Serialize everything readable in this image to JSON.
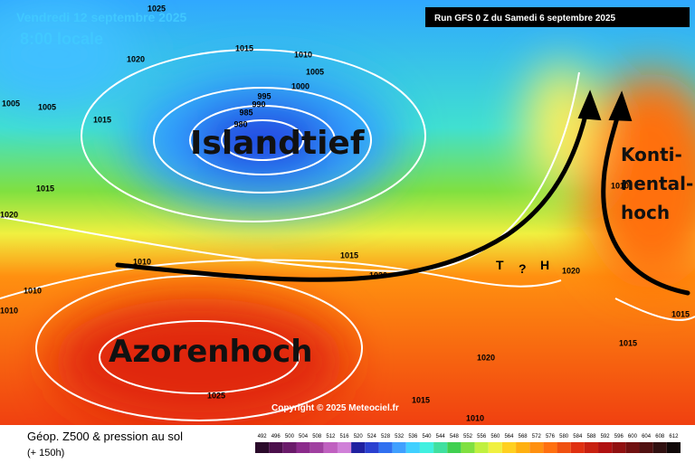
{
  "header": {
    "valid": "Vendredi 12 septembre 2025",
    "time": "8:00 locale",
    "run": "Run GFS 0 Z du Samedi 6 septembre 2025"
  },
  "labels": {
    "low": "Islandtief",
    "high": "Azorenhoch",
    "continental": [
      "Konti-",
      "nental-",
      "hoch"
    ],
    "marks": [
      "T",
      "?",
      "H"
    ]
  },
  "isobars": [
    "1025",
    "1020",
    "1015",
    "1010",
    "1005",
    "1000",
    "995",
    "990",
    "985",
    "980",
    "1005",
    "1005",
    "1015",
    "1015",
    "1020",
    "1010",
    "1010",
    "1010",
    "1015",
    "1020",
    "1020",
    "1015",
    "1015",
    "1020",
    "1025",
    "1015",
    "1010",
    "1010"
  ],
  "copyright": "Copyright © 2025 Meteociel.fr",
  "legend": {
    "title": "Géop. Z500 & pression au sol",
    "lead": "(+ 150h)",
    "scale": {
      "labels": [
        "492",
        "496",
        "500",
        "504",
        "508",
        "512",
        "516",
        "520",
        "524",
        "528",
        "532",
        "536",
        "540",
        "544",
        "548",
        "552",
        "556",
        "560",
        "564",
        "568",
        "572",
        "576",
        "580",
        "584",
        "588",
        "592",
        "596",
        "600",
        "604",
        "608",
        "612"
      ],
      "colors": [
        "#2a0a2a",
        "#4b0f4b",
        "#6a1a6a",
        "#8b2a8b",
        "#a040a0",
        "#c060c0",
        "#d080d8",
        "#2020a0",
        "#2a40d0",
        "#3070f0",
        "#40a0ff",
        "#40d0ff",
        "#40f0e0",
        "#40e0a0",
        "#40d050",
        "#80e040",
        "#c0f040",
        "#f0f040",
        "#ffd020",
        "#ffb010",
        "#ff9010",
        "#ff7010",
        "#f05010",
        "#e03010",
        "#c82010",
        "#b01010",
        "#901010",
        "#701010",
        "#501010",
        "#301010",
        "#100808"
      ]
    }
  }
}
